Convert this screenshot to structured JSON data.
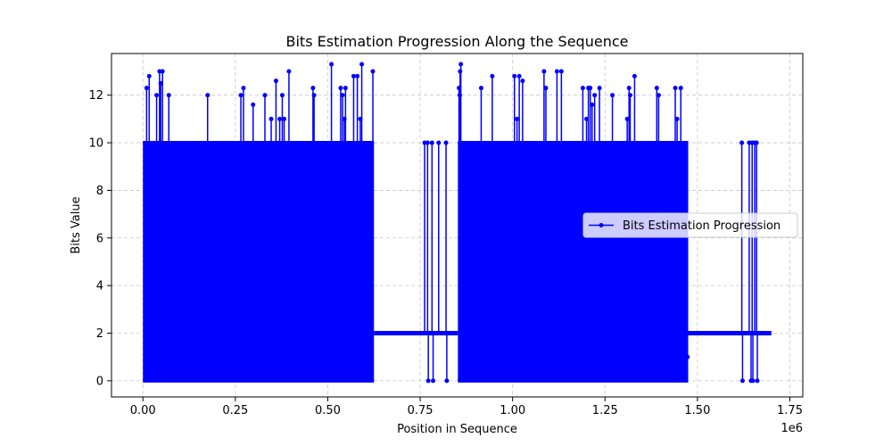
{
  "chart_data": {
    "type": "line",
    "title": "Bits Estimation Progression Along the Sequence",
    "xlabel": "Position in Sequence",
    "ylabel": "Bits Value",
    "x_offset_label": "1e6",
    "xlim": [
      -0.085,
      1.785
    ],
    "ylim": [
      -0.68,
      13.75
    ],
    "x_ticks": [
      0.0,
      0.25,
      0.5,
      0.75,
      1.0,
      1.25,
      1.5,
      1.75
    ],
    "x_tick_labels": [
      "0.00",
      "0.25",
      "0.50",
      "0.75",
      "1.00",
      "1.25",
      "1.50",
      "1.75"
    ],
    "y_ticks": [
      0,
      2,
      4,
      6,
      8,
      10,
      12
    ],
    "y_tick_labels": [
      "0",
      "2",
      "4",
      "6",
      "8",
      "10",
      "12"
    ],
    "grid": true,
    "legend_position": "center-right",
    "series": [
      {
        "name": "Bits Estimation Progression",
        "color": "#0000ff",
        "marker": "circle",
        "dense_segments": [
          {
            "x_start": 0.0,
            "x_end": 0.625,
            "low": 0,
            "high": 10,
            "baseline": 2
          },
          {
            "x_start": 0.852,
            "x_end": 1.475,
            "low": 0,
            "high": 10,
            "baseline": 2
          }
        ],
        "baseline_segments": [
          {
            "x_start": 0.625,
            "x_end": 0.852,
            "value": 2
          },
          {
            "x_start": 1.475,
            "x_end": 1.7,
            "value": 2
          }
        ],
        "spikes": [
          {
            "x": 0.01,
            "y": 12.3
          },
          {
            "x": 0.017,
            "y": 12.8
          },
          {
            "x": 0.037,
            "y": 12.0
          },
          {
            "x": 0.045,
            "y": 13.0
          },
          {
            "x": 0.048,
            "y": 12.5
          },
          {
            "x": 0.053,
            "y": 13.0
          },
          {
            "x": 0.07,
            "y": 12.0
          },
          {
            "x": 0.175,
            "y": 12.0
          },
          {
            "x": 0.265,
            "y": 12.0
          },
          {
            "x": 0.272,
            "y": 12.3
          },
          {
            "x": 0.298,
            "y": 11.6
          },
          {
            "x": 0.33,
            "y": 12.0
          },
          {
            "x": 0.347,
            "y": 11.0
          },
          {
            "x": 0.36,
            "y": 12.6
          },
          {
            "x": 0.37,
            "y": 11.0
          },
          {
            "x": 0.377,
            "y": 12.0
          },
          {
            "x": 0.382,
            "y": 11.0
          },
          {
            "x": 0.395,
            "y": 13.0
          },
          {
            "x": 0.46,
            "y": 12.3
          },
          {
            "x": 0.463,
            "y": 12.0
          },
          {
            "x": 0.51,
            "y": 13.3
          },
          {
            "x": 0.535,
            "y": 12.3
          },
          {
            "x": 0.54,
            "y": 12.0
          },
          {
            "x": 0.545,
            "y": 11.0
          },
          {
            "x": 0.548,
            "y": 12.3
          },
          {
            "x": 0.57,
            "y": 12.8
          },
          {
            "x": 0.58,
            "y": 12.8
          },
          {
            "x": 0.588,
            "y": 11.0
          },
          {
            "x": 0.592,
            "y": 13.3
          },
          {
            "x": 0.622,
            "y": 13.0
          },
          {
            "x": 0.855,
            "y": 12.3
          },
          {
            "x": 0.857,
            "y": 12.0
          },
          {
            "x": 0.858,
            "y": 13.0
          },
          {
            "x": 0.86,
            "y": 13.3
          },
          {
            "x": 0.915,
            "y": 12.3
          },
          {
            "x": 0.945,
            "y": 12.8
          },
          {
            "x": 1.005,
            "y": 12.8
          },
          {
            "x": 1.012,
            "y": 11.0
          },
          {
            "x": 1.018,
            "y": 12.8
          },
          {
            "x": 1.027,
            "y": 12.6
          },
          {
            "x": 1.085,
            "y": 13.0
          },
          {
            "x": 1.09,
            "y": 12.3
          },
          {
            "x": 1.12,
            "y": 13.0
          },
          {
            "x": 1.132,
            "y": 13.0
          },
          {
            "x": 1.19,
            "y": 12.3
          },
          {
            "x": 1.2,
            "y": 11.0
          },
          {
            "x": 1.205,
            "y": 12.3
          },
          {
            "x": 1.21,
            "y": 12.3
          },
          {
            "x": 1.215,
            "y": 11.6
          },
          {
            "x": 1.222,
            "y": 12.0
          },
          {
            "x": 1.235,
            "y": 12.3
          },
          {
            "x": 1.27,
            "y": 12.0
          },
          {
            "x": 1.31,
            "y": 11.0
          },
          {
            "x": 1.315,
            "y": 12.3
          },
          {
            "x": 1.318,
            "y": 12.0
          },
          {
            "x": 1.33,
            "y": 12.8
          },
          {
            "x": 1.39,
            "y": 12.3
          },
          {
            "x": 1.395,
            "y": 12.0
          },
          {
            "x": 1.44,
            "y": 12.3
          },
          {
            "x": 1.445,
            "y": 11.0
          },
          {
            "x": 1.455,
            "y": 12.3
          }
        ],
        "outlier_points": [
          {
            "x": 0.762,
            "y": 10
          },
          {
            "x": 0.77,
            "y": 10
          },
          {
            "x": 0.772,
            "y": 0
          },
          {
            "x": 0.782,
            "y": 10
          },
          {
            "x": 0.785,
            "y": 0
          },
          {
            "x": 0.8,
            "y": 10
          },
          {
            "x": 0.82,
            "y": 10
          },
          {
            "x": 0.822,
            "y": 0
          },
          {
            "x": 1.62,
            "y": 10
          },
          {
            "x": 1.622,
            "y": 0
          },
          {
            "x": 1.64,
            "y": 10
          },
          {
            "x": 1.645,
            "y": 0
          },
          {
            "x": 1.648,
            "y": 10
          },
          {
            "x": 1.65,
            "y": 0
          },
          {
            "x": 1.655,
            "y": 10
          },
          {
            "x": 1.66,
            "y": 10
          },
          {
            "x": 1.662,
            "y": 0
          },
          {
            "x": 1.473,
            "y": 1.0
          }
        ]
      }
    ]
  }
}
